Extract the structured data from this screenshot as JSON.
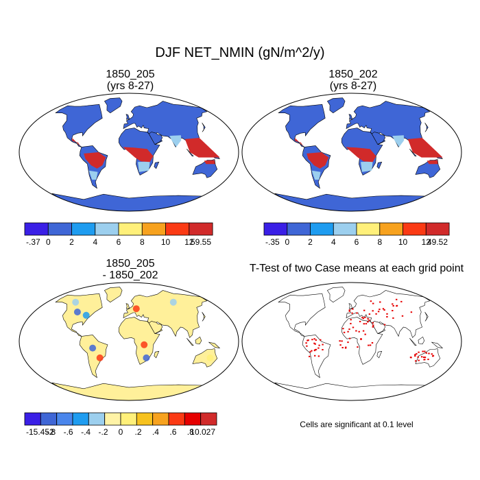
{
  "title": "DJF NET_NMIN (gN/m^2/y)",
  "panels": [
    {
      "id": "p1",
      "title_line1": "1850_205",
      "title_line2": "(yrs 8-27)",
      "base_fill": "#3f66d6"
    },
    {
      "id": "p2",
      "title_line1": "1850_202",
      "title_line2": "(yrs 8-27)",
      "base_fill": "#3f66d6"
    },
    {
      "id": "p3",
      "title_line1": "1850_205",
      "title_line2": "- 1850_202",
      "base_fill": "#fff09a"
    },
    {
      "id": "p4",
      "title_line1": "T-Test of two Case means at each grid point",
      "title_line2": "",
      "base_fill": "#ffffff"
    }
  ],
  "colorbars": [
    {
      "id": "cb1",
      "labels": [
        "-.37",
        "0",
        "2",
        "4",
        "6",
        "8",
        "10",
        "12",
        "59.55"
      ],
      "colors": [
        "#3a1fe6",
        "#3f66d6",
        "#1e9cf0",
        "#9ccfee",
        "#fff07a",
        "#f7a21e",
        "#fb3a14",
        "#d12a2a"
      ]
    },
    {
      "id": "cb2",
      "labels": [
        "-.35",
        "0",
        "2",
        "4",
        "6",
        "8",
        "10",
        "12",
        "49.52"
      ],
      "colors": [
        "#3a1fe6",
        "#3f66d6",
        "#1e9cf0",
        "#9ccfee",
        "#fff07a",
        "#f7a21e",
        "#fb3a14",
        "#d12a2a"
      ]
    },
    {
      "id": "cb3",
      "labels": [
        "-15.452",
        "-.8",
        "-.6",
        "-.4",
        "-.2",
        "0",
        ".2",
        ".4",
        ".6",
        ".8",
        "10.027"
      ],
      "colors": [
        "#3a1fe6",
        "#3f66d6",
        "#4a86ec",
        "#1e9cf0",
        "#9ccfee",
        "#fff3a6",
        "#fff07a",
        "#f7c21e",
        "#f7a21e",
        "#fb3a14",
        "#e60000",
        "#d12a2a"
      ]
    }
  ],
  "note": "Cells are significant at 0.1 level",
  "colors": {
    "coast": "#000000",
    "significant": "#e60000"
  }
}
